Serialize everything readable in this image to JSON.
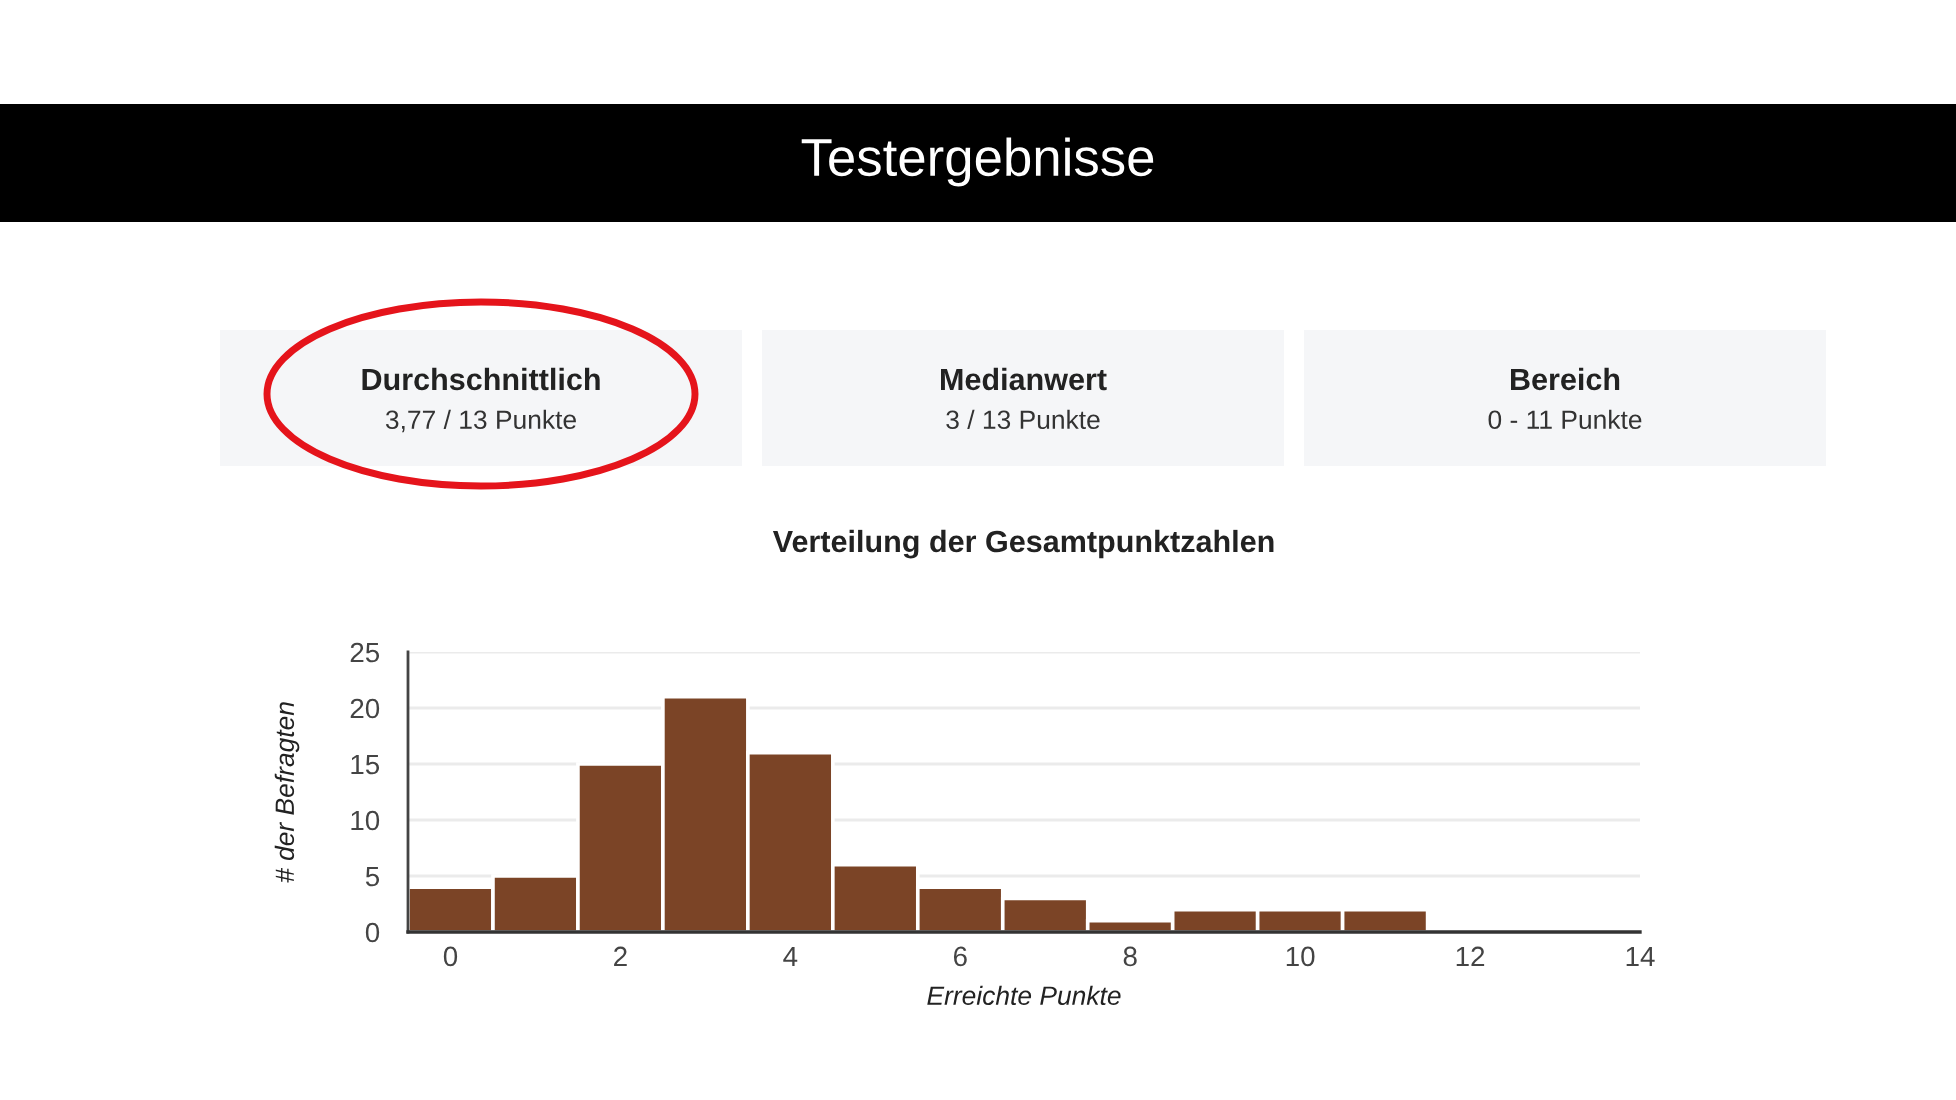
{
  "chart_data": [
    {
      "type": "other",
      "title": "Testergebnisse",
      "annotations": [
        "Durchschnittlich",
        "3,77 / 13 Punkte",
        "Medianwert",
        "3 / 13 Punkte",
        "Bereich",
        "0 - 11 Punkte"
      ]
    },
    {
      "type": "histogram",
      "title": "Verteilung der Gesamtpunktzahlen",
      "xlabel": "Erreichte Punkte",
      "ylabel": "# der Befragten",
      "bins": [
        -0.5,
        0.5,
        1.5,
        2.5,
        3.5,
        4.5,
        5.5,
        6.5,
        7.5,
        8.5,
        9.5,
        10.5,
        11.5
      ],
      "values": [
        4,
        5,
        15,
        21,
        16,
        6,
        4,
        3,
        1,
        2,
        2,
        2
      ],
      "color": "#7b4426",
      "xlim": [
        -0.5,
        14
      ],
      "xticks": [
        0,
        2,
        4,
        6,
        8,
        10,
        12,
        14
      ],
      "ylim": [
        0,
        25
      ],
      "yticks": [
        0,
        5,
        10,
        15,
        20,
        25
      ],
      "grid": "y"
    }
  ]
}
